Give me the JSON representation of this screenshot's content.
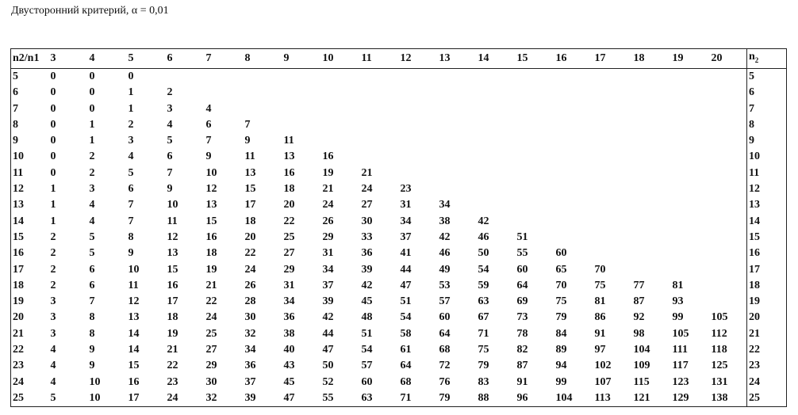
{
  "title": "Двусторонний критерий, α = 0,01",
  "table": {
    "corner_header": "n2/n1",
    "right_header": "n",
    "right_header_sub": "2",
    "columns": [
      "3",
      "4",
      "5",
      "6",
      "7",
      "8",
      "9",
      "10",
      "11",
      "12",
      "13",
      "14",
      "15",
      "16",
      "17",
      "18",
      "19",
      "20"
    ],
    "rows": [
      {
        "n2": "5",
        "values": [
          "0",
          "0",
          "0"
        ]
      },
      {
        "n2": "6",
        "values": [
          "0",
          "0",
          "1",
          "2"
        ]
      },
      {
        "n2": "7",
        "values": [
          "0",
          "0",
          "1",
          "3",
          "4"
        ]
      },
      {
        "n2": "8",
        "values": [
          "0",
          "1",
          "2",
          "4",
          "6",
          "7"
        ]
      },
      {
        "n2": "9",
        "values": [
          "0",
          "1",
          "3",
          "5",
          "7",
          "9",
          "11"
        ]
      },
      {
        "n2": "10",
        "values": [
          "0",
          "2",
          "4",
          "6",
          "9",
          "11",
          "13",
          "16"
        ]
      },
      {
        "n2": "11",
        "values": [
          "0",
          "2",
          "5",
          "7",
          "10",
          "13",
          "16",
          "19",
          "21"
        ]
      },
      {
        "n2": "12",
        "values": [
          "1",
          "3",
          "6",
          "9",
          "12",
          "15",
          "18",
          "21",
          "24",
          "23"
        ]
      },
      {
        "n2": "13",
        "values": [
          "1",
          "4",
          "7",
          "10",
          "13",
          "17",
          "20",
          "24",
          "27",
          "31",
          "34"
        ]
      },
      {
        "n2": "14",
        "values": [
          "1",
          "4",
          "7",
          "11",
          "15",
          "18",
          "22",
          "26",
          "30",
          "34",
          "38",
          "42"
        ]
      },
      {
        "n2": "15",
        "values": [
          "2",
          "5",
          "8",
          "12",
          "16",
          "20",
          "25",
          "29",
          "33",
          "37",
          "42",
          "46",
          "51"
        ]
      },
      {
        "n2": "16",
        "values": [
          "2",
          "5",
          "9",
          "13",
          "18",
          "22",
          "27",
          "31",
          "36",
          "41",
          "46",
          "50",
          "55",
          "60"
        ]
      },
      {
        "n2": "17",
        "values": [
          "2",
          "6",
          "10",
          "15",
          "19",
          "24",
          "29",
          "34",
          "39",
          "44",
          "49",
          "54",
          "60",
          "65",
          "70"
        ]
      },
      {
        "n2": "18",
        "values": [
          "2",
          "6",
          "11",
          "16",
          "21",
          "26",
          "31",
          "37",
          "42",
          "47",
          "53",
          "59",
          "64",
          "70",
          "75",
          "77",
          "81"
        ]
      },
      {
        "n2": "19",
        "values": [
          "3",
          "7",
          "12",
          "17",
          "22",
          "28",
          "34",
          "39",
          "45",
          "51",
          "57",
          "63",
          "69",
          "75",
          "81",
          "87",
          "93"
        ]
      },
      {
        "n2": "20",
        "values": [
          "3",
          "8",
          "13",
          "18",
          "24",
          "30",
          "36",
          "42",
          "48",
          "54",
          "60",
          "67",
          "73",
          "79",
          "86",
          "92",
          "99",
          "105"
        ]
      },
      {
        "n2": "21",
        "values": [
          "3",
          "8",
          "14",
          "19",
          "25",
          "32",
          "38",
          "44",
          "51",
          "58",
          "64",
          "71",
          "78",
          "84",
          "91",
          "98",
          "105",
          "112"
        ]
      },
      {
        "n2": "22",
        "values": [
          "4",
          "9",
          "14",
          "21",
          "27",
          "34",
          "40",
          "47",
          "54",
          "61",
          "68",
          "75",
          "82",
          "89",
          "97",
          "104",
          "111",
          "118"
        ]
      },
      {
        "n2": "23",
        "values": [
          "4",
          "9",
          "15",
          "22",
          "29",
          "36",
          "43",
          "50",
          "57",
          "64",
          "72",
          "79",
          "87",
          "94",
          "102",
          "109",
          "117",
          "125"
        ]
      },
      {
        "n2": "24",
        "values": [
          "4",
          "10",
          "16",
          "23",
          "30",
          "37",
          "45",
          "52",
          "60",
          "68",
          "76",
          "83",
          "91",
          "99",
          "107",
          "115",
          "123",
          "131"
        ]
      },
      {
        "n2": "25",
        "values": [
          "5",
          "10",
          "17",
          "24",
          "32",
          "39",
          "47",
          "55",
          "63",
          "71",
          "79",
          "88",
          "96",
          "104",
          "113",
          "121",
          "129",
          "138"
        ]
      }
    ]
  }
}
